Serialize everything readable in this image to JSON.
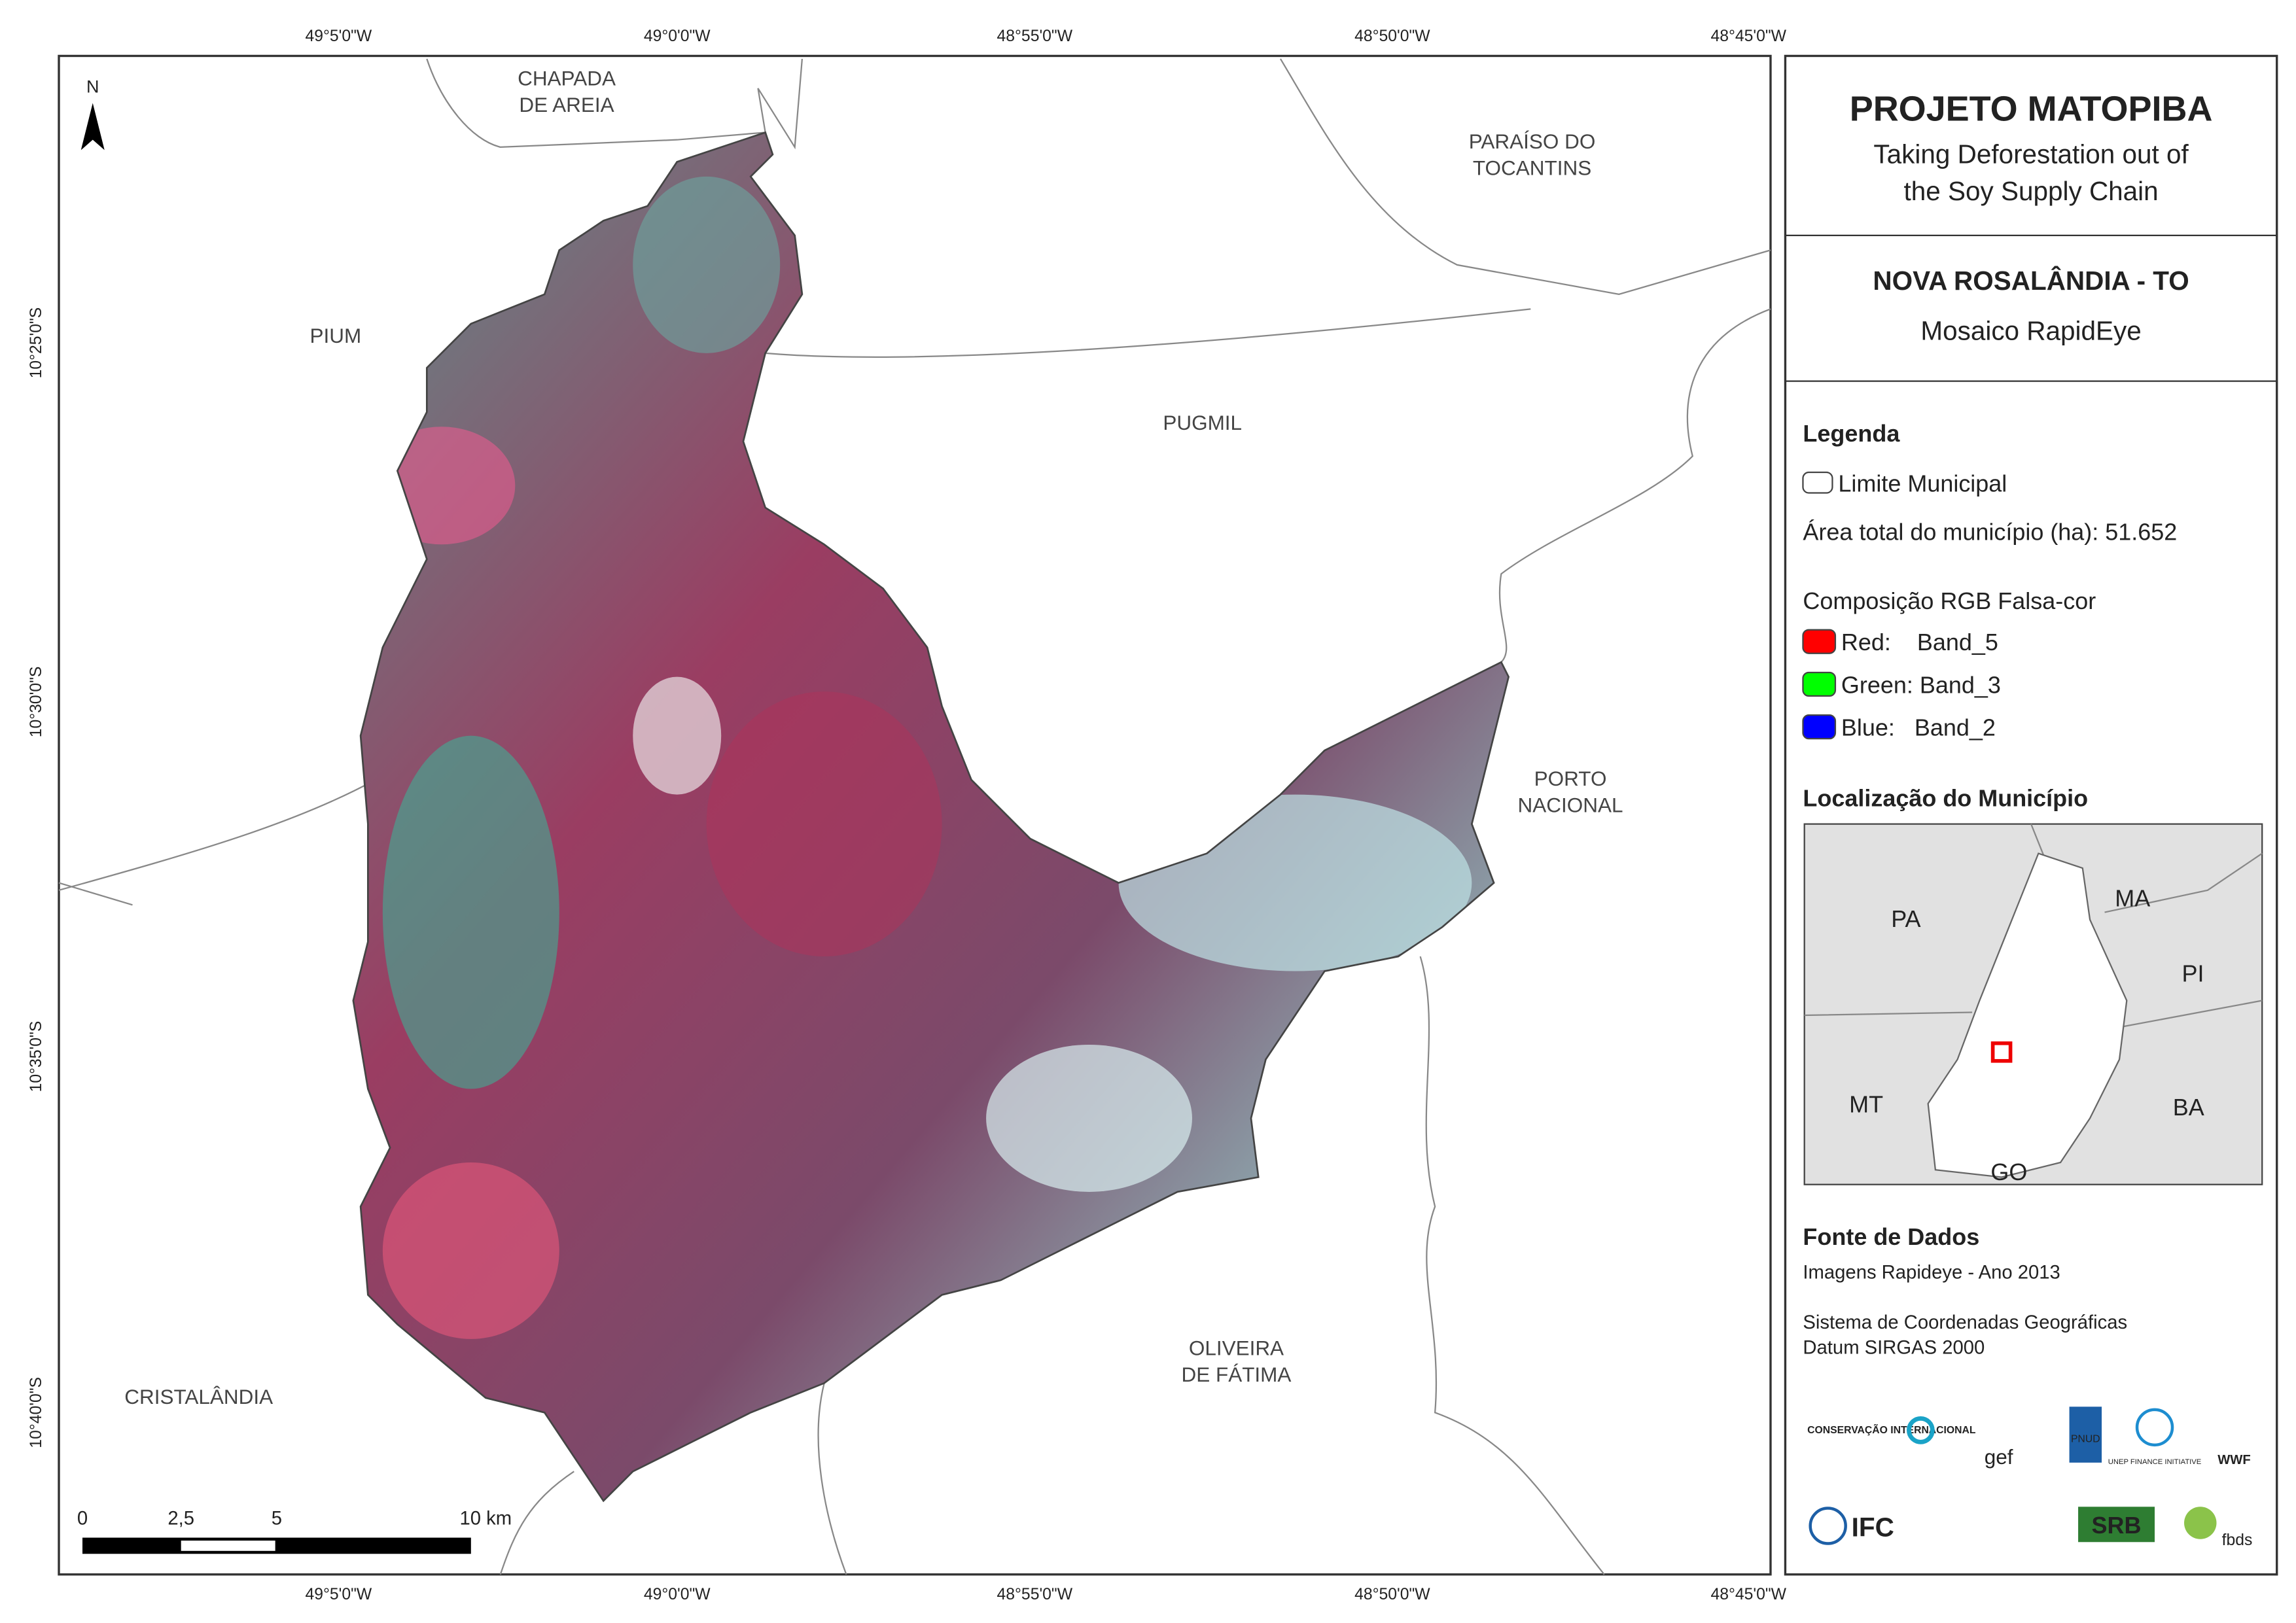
{
  "map": {
    "grid_top": [
      "49°5'0\"W",
      "49°0'0\"W",
      "48°55'0\"W",
      "48°50'0\"W",
      "48°45'0\"W"
    ],
    "grid_bottom": [
      "49°5'0\"W",
      "49°0'0\"W",
      "48°55'0\"W",
      "48°50'0\"W",
      "48°45'0\"W"
    ],
    "grid_left": [
      "10°25'0\"S",
      "10°30'0\"S",
      "10°35'0\"S",
      "10°40'0\"S"
    ],
    "north": "N",
    "places": [
      {
        "lines": [
          "CHAPADA",
          "DE AREIA"
        ]
      },
      {
        "lines": [
          "PARAÍSO DO",
          "TOCANTINS"
        ]
      },
      {
        "lines": [
          "PIUM"
        ]
      },
      {
        "lines": [
          "PUGMIL"
        ]
      },
      {
        "lines": [
          "PORTO",
          "NACIONAL"
        ]
      },
      {
        "lines": [
          "OLIVEIRA",
          "DE FÁTIMA"
        ]
      },
      {
        "lines": [
          "CRISTALÂNDIA"
        ]
      }
    ],
    "scale": [
      "0",
      "2,5",
      "5",
      "10 km"
    ]
  },
  "panel": {
    "title": "PROJETO MATOPIBA",
    "subtitle": [
      "Taking Deforestation out of",
      "the Soy Supply Chain"
    ],
    "municipality": "NOVA ROSALÂNDIA - TO",
    "mosaic": "Mosaico RapidEye",
    "legend_title": "Legenda",
    "limit": "Limite Municipal",
    "area": "Área total do município (ha): 51.652",
    "composition": "Composição RGB Falsa-cor",
    "bands": [
      {
        "label": "Red:    Band_5",
        "color": "#ff0000"
      },
      {
        "label": "Green: Band_3",
        "color": "#00ff00"
      },
      {
        "label": "Blue:   Band_2",
        "color": "#0000ff"
      }
    ],
    "location_title": "Localização do Município",
    "locator_labels": [
      "PA",
      "MA",
      "PI",
      "MT",
      "BA",
      "GO"
    ],
    "source_title": "Fonte de Dados",
    "source": [
      "Imagens Rapideye - Ano 2013",
      "Sistema de Coordenadas Geográficas",
      "Datum SIRGAS 2000"
    ],
    "logos": [
      "CONSERVAÇÃO INTERNACIONAL",
      "gef",
      "PNUD",
      "UNEP FINANCE INITIATIVE",
      "WWF",
      "IFC",
      "SRB",
      "fbds"
    ]
  }
}
